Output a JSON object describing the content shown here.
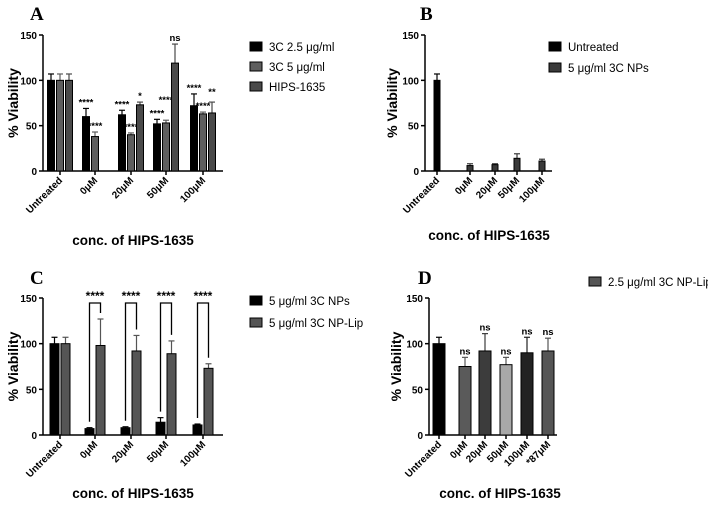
{
  "chart_data": [
    {
      "panel": "A",
      "type": "bar",
      "xlabel": "conc. of HIPS-1635",
      "ylabel": "% Viability",
      "ylim": [
        0,
        150
      ],
      "yticks": [
        0,
        50,
        100,
        150
      ],
      "categories": [
        "Untreated",
        "0μM",
        "20μM",
        "50μM",
        "100μM"
      ],
      "legend_position": "right",
      "series": [
        {
          "name": "3C 2.5 μg/ml",
          "color": "#000000",
          "values": [
            100,
            60,
            62,
            52,
            72
          ],
          "errors": [
            7,
            9,
            5,
            5,
            13
          ],
          "significance": [
            "",
            "****",
            "****",
            "****",
            "****"
          ]
        },
        {
          "name": "3C 5 μg/ml",
          "color": "#5e5e5e",
          "values": [
            100,
            38,
            40,
            53,
            63
          ],
          "errors": [
            7,
            5,
            2,
            3,
            2
          ],
          "significance": [
            "",
            "****",
            "****",
            "****",
            "****"
          ]
        },
        {
          "name": "HIPS-1635",
          "color": "#4a4a4a",
          "values": [
            100,
            null,
            73,
            119,
            64
          ],
          "errors": [
            7,
            null,
            3,
            21,
            12
          ],
          "significance": [
            "",
            "",
            "*",
            "ns",
            "**"
          ]
        }
      ]
    },
    {
      "panel": "B",
      "type": "bar",
      "xlabel": "conc. of HIPS-1635",
      "ylabel": "% Viability",
      "ylim": [
        0,
        150
      ],
      "yticks": [
        0,
        50,
        100,
        150
      ],
      "categories": [
        "Untreated",
        "0μM",
        "20μM",
        "50μM",
        "100μM"
      ],
      "legend_position": "right",
      "legend": [
        {
          "name": "Untreated",
          "color": "#000000"
        },
        {
          "name": "5 μg/ml 3C NPs",
          "color": "#3a3a3a"
        }
      ],
      "series": [
        {
          "name": "",
          "colors": [
            "#000000",
            "#3a3a3a",
            "#3a3a3a",
            "#3a3a3a",
            "#3a3a3a"
          ],
          "values": [
            100,
            6,
            7,
            14,
            11
          ],
          "errors": [
            7,
            2,
            1,
            5,
            2
          ]
        }
      ]
    },
    {
      "panel": "C",
      "type": "bar",
      "xlabel": "conc. of HIPS-1635",
      "ylabel": "% Viability",
      "ylim": [
        0,
        150
      ],
      "yticks": [
        0,
        50,
        100,
        150
      ],
      "categories": [
        "Untreated",
        "0μM",
        "20μM",
        "50μM",
        "100μM"
      ],
      "legend_position": "right",
      "series": [
        {
          "name": "5 μg/ml 3C NPs",
          "color": "#000000",
          "values": [
            100,
            7,
            8,
            14,
            11
          ],
          "errors": [
            7,
            1,
            1,
            5,
            1
          ]
        },
        {
          "name": "5 μg/ml 3C NP-Lip",
          "color": "#555555",
          "values": [
            100,
            98,
            92,
            89,
            73
          ],
          "errors": [
            7,
            29,
            17,
            14,
            5
          ]
        }
      ],
      "comparisons": [
        "",
        "****",
        "****",
        "****",
        "****"
      ]
    },
    {
      "panel": "D",
      "type": "bar",
      "xlabel": "conc. of HIPS-1635",
      "ylabel": "% Viability",
      "ylim": [
        0,
        150
      ],
      "yticks": [
        0,
        50,
        100,
        150
      ],
      "categories": [
        "Untreated",
        "0μM",
        "20μM",
        "50μM",
        "100μM",
        "*87μM"
      ],
      "legend_position": "right",
      "legend": [
        {
          "name": "2.5 μg/ml 3C NP-Lip",
          "color": "#555555"
        }
      ],
      "series": [
        {
          "name": "",
          "colors": [
            "#000000",
            "#5a5a5a",
            "#3c3c3c",
            "#a8a8a8",
            "#222222",
            "#555555"
          ],
          "values": [
            100,
            75,
            92,
            77,
            90,
            92
          ],
          "errors": [
            7,
            10,
            19,
            8,
            17,
            14
          ],
          "significance": [
            "",
            "ns",
            "ns",
            "ns",
            "ns",
            "ns"
          ]
        }
      ]
    }
  ]
}
